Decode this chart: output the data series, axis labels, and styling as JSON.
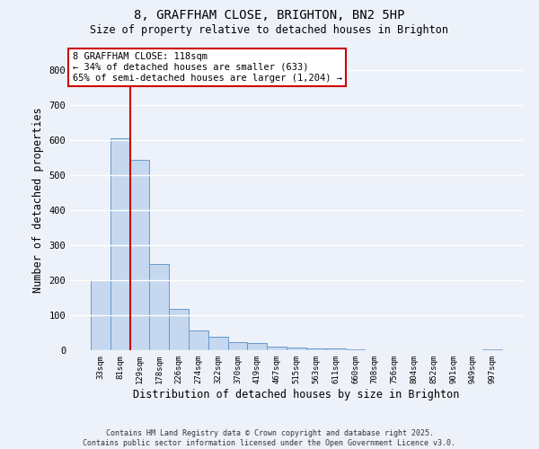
{
  "title_line1": "8, GRAFFHAM CLOSE, BRIGHTON, BN2 5HP",
  "title_line2": "Size of property relative to detached houses in Brighton",
  "xlabel": "Distribution of detached houses by size in Brighton",
  "ylabel": "Number of detached properties",
  "bar_labels": [
    "33sqm",
    "81sqm",
    "129sqm",
    "178sqm",
    "226sqm",
    "274sqm",
    "322sqm",
    "370sqm",
    "419sqm",
    "467sqm",
    "515sqm",
    "563sqm",
    "611sqm",
    "660sqm",
    "708sqm",
    "756sqm",
    "804sqm",
    "852sqm",
    "901sqm",
    "949sqm",
    "997sqm"
  ],
  "bar_heights": [
    200,
    607,
    545,
    247,
    118,
    57,
    38,
    24,
    20,
    10,
    7,
    6,
    4,
    2,
    1,
    1,
    1,
    0,
    0,
    0,
    2
  ],
  "bar_color": "#c5d8f0",
  "bar_edge_color": "#6699cc",
  "vline_color": "#cc0000",
  "annotation_text": "8 GRAFFHAM CLOSE: 118sqm\n← 34% of detached houses are smaller (633)\n65% of semi-detached houses are larger (1,204) →",
  "annotation_box_facecolor": "#ffffff",
  "annotation_box_edgecolor": "#cc0000",
  "ylim_max": 860,
  "yticks": [
    0,
    100,
    200,
    300,
    400,
    500,
    600,
    700,
    800
  ],
  "background_color": "#edf2fa",
  "grid_color": "#ffffff",
  "footer_line1": "Contains HM Land Registry data © Crown copyright and database right 2025.",
  "footer_line2": "Contains public sector information licensed under the Open Government Licence v3.0."
}
